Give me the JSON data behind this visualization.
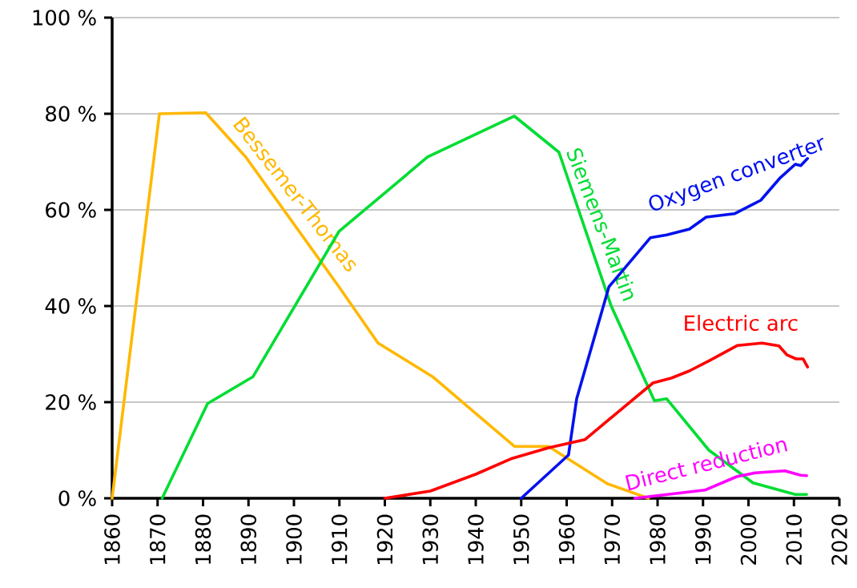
{
  "chart_data": {
    "type": "line",
    "xlim": [
      1860,
      2020
    ],
    "ylim": [
      0,
      100
    ],
    "xticks": [
      1860,
      1870,
      1880,
      1890,
      1900,
      1910,
      1920,
      1930,
      1940,
      1950,
      1960,
      1970,
      1980,
      1990,
      2000,
      2010,
      2020
    ],
    "yticks": [
      {
        "value": 0,
        "label": "0 %"
      },
      {
        "value": 20,
        "label": "20 %"
      },
      {
        "value": 40,
        "label": "40 %"
      },
      {
        "value": 60,
        "label": "60 %"
      },
      {
        "value": 80,
        "label": "80 %"
      },
      {
        "value": 100,
        "label": "100 %"
      }
    ],
    "grid": "y",
    "legend": false,
    "marker": "none",
    "line_style": "solid",
    "series": [
      {
        "name": "Bessemer-Thomas",
        "color": "#ffb800",
        "x": [
          1860,
          1870.4,
          1880.6,
          1889.4,
          1909.9,
          1918.5,
          1930.5,
          1948.5,
          1956,
          1969,
          1978
        ],
        "values": [
          0,
          80,
          80.2,
          71,
          44,
          32.3,
          25.3,
          10.8,
          10.8,
          3,
          0
        ]
      },
      {
        "name": "Siemens-Martin",
        "color": "#00dd33",
        "x": [
          1871,
          1881,
          1891,
          1909.9,
          1929.4,
          1948.5,
          1958.3,
          1969.8,
          1979.3,
          1982,
          1991.3,
          2001,
          2010.3,
          2012.8
        ],
        "values": [
          0,
          19.7,
          25.3,
          55.5,
          71,
          79.5,
          72,
          40,
          20.3,
          20.7,
          10,
          3.2,
          0.8,
          0.8
        ]
      },
      {
        "name": "Oxygen converter",
        "color": "#0011ee",
        "x": [
          1950,
          1960.4,
          1962.2,
          1969.3,
          1978.4,
          1982,
          1987,
          1990.7,
          1996.9,
          2002.7,
          2007,
          2010.3,
          2011.5,
          2013
        ],
        "values": [
          0,
          9,
          20.7,
          44,
          54.2,
          54.8,
          56,
          58.5,
          59.2,
          62,
          66.7,
          69.5,
          69.2,
          70.7
        ]
      },
      {
        "name": "Electric arc",
        "color": "#ff0000",
        "x": [
          1920,
          1930,
          1940,
          1948,
          1956,
          1964,
          1979,
          1983,
          1987,
          1991.5,
          1997.6,
          2003,
          2006.7,
          2008.5,
          2010.5,
          2012,
          2013
        ],
        "values": [
          0,
          1.5,
          5,
          8.3,
          10.5,
          12.2,
          24,
          25,
          26.5,
          28.7,
          31.8,
          32.3,
          31.7,
          29.8,
          29,
          29,
          27.3
        ]
      },
      {
        "name": "Direct reduction",
        "color": "#ff00ff",
        "x": [
          1975,
          1990.4,
          1997.4,
          2001.5,
          2008,
          2011.5,
          2012.8
        ],
        "values": [
          0,
          1.7,
          4.5,
          5.3,
          5.7,
          4.8,
          4.7
        ]
      }
    ]
  }
}
